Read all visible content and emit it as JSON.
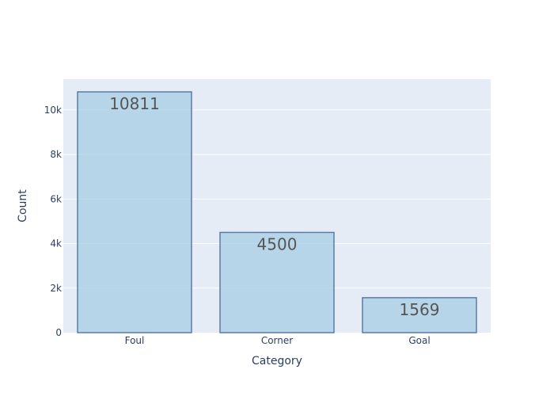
{
  "chart_data": {
    "type": "bar",
    "categories": [
      "Foul",
      "Corner",
      "Goal"
    ],
    "values": [
      10811,
      4500,
      1569
    ],
    "value_labels": [
      "10811",
      "4500",
      "1569"
    ],
    "xlabel": "Category",
    "ylabel": "Count",
    "ylim": [
      0,
      11380
    ],
    "y_ticks": [
      0,
      2000,
      4000,
      6000,
      8000,
      10000
    ],
    "y_tick_labels": [
      "0",
      "2k",
      "4k",
      "6k",
      "8k",
      "10k"
    ],
    "grid": true,
    "colors": {
      "plot_background": "#e5ecf6",
      "grid": "#ffffff",
      "bar_fill": "#a6cee3",
      "bar_stroke": "#5b7ba8"
    }
  }
}
